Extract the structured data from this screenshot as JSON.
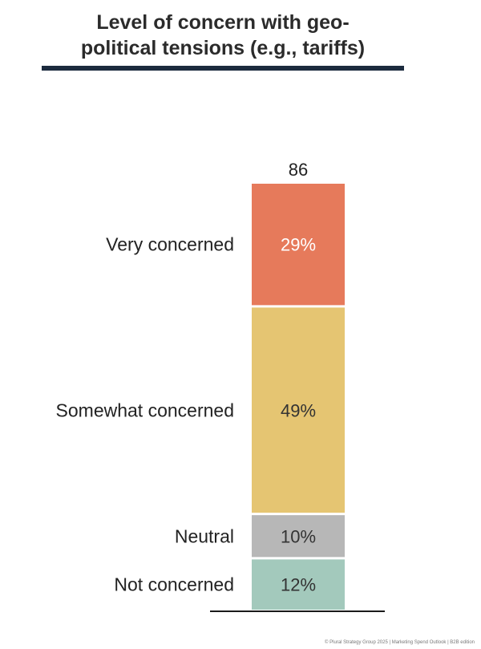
{
  "title": {
    "line1": "Level of concern with geo-",
    "line2": "political tensions (e.g., tariffs)"
  },
  "chart_data": {
    "type": "bar",
    "stacked": true,
    "total_label": "86",
    "categories": [
      "86"
    ],
    "series": [
      {
        "name": "Very concerned",
        "values": [
          29
        ],
        "label": "29%",
        "color": "#e67a5b"
      },
      {
        "name": "Somewhat concerned",
        "values": [
          49
        ],
        "label": "49%",
        "color": "#e5c572"
      },
      {
        "name": "Neutral",
        "values": [
          10
        ],
        "label": "10%",
        "color": "#b7b7b7"
      },
      {
        "name": "Not concerned",
        "values": [
          12
        ],
        "label": "12%",
        "color": "#a3c9bc"
      }
    ],
    "ylim": [
      0,
      100
    ]
  },
  "footer": "© Plural Strategy Group 2025 | Marketing Spend Outlook | B2B edition",
  "colors": {
    "title_rule": "#1c2b3e",
    "baseline": "#1a1a1a",
    "label_on_dark": "#ffffff",
    "label_on_light": "#333333"
  }
}
